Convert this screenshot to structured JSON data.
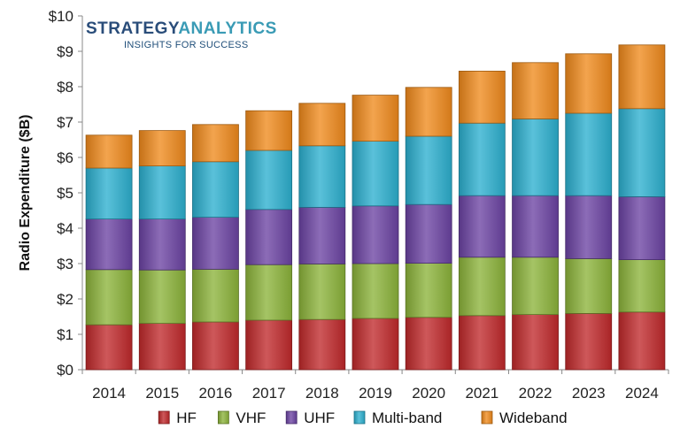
{
  "brand": {
    "name_part1": "STRATEGY",
    "name_part2": "ANALYTICS",
    "tagline": "INSIGHTS FOR SUCCESS",
    "color_part1": "#2a4d7a",
    "color_part2": "#3a9bb5"
  },
  "chart_data": {
    "type": "bar",
    "stacked": true,
    "ylabel": "Radio Expenditure ($B)",
    "xlabel": "",
    "ylim": [
      0,
      10
    ],
    "y_ticks": [
      "$0",
      "$1",
      "$2",
      "$3",
      "$4",
      "$5",
      "$6",
      "$7",
      "$8",
      "$9",
      "$10"
    ],
    "y_tick_values": [
      0,
      1,
      2,
      3,
      4,
      5,
      6,
      7,
      8,
      9,
      10
    ],
    "categories": [
      "2014",
      "2015",
      "2016",
      "2017",
      "2018",
      "2019",
      "2020",
      "2021",
      "2022",
      "2023",
      "2024"
    ],
    "legend_position": "bottom",
    "series": [
      {
        "name": "HF",
        "color": "#c0292b",
        "values": [
          1.27,
          1.31,
          1.35,
          1.4,
          1.42,
          1.45,
          1.48,
          1.53,
          1.56,
          1.59,
          1.63
        ]
      },
      {
        "name": "VHF",
        "color": "#8cb33a",
        "values": [
          1.56,
          1.51,
          1.49,
          1.57,
          1.57,
          1.55,
          1.53,
          1.65,
          1.62,
          1.55,
          1.48
        ]
      },
      {
        "name": "UHF",
        "color": "#6b43a3",
        "values": [
          1.43,
          1.44,
          1.47,
          1.56,
          1.6,
          1.63,
          1.66,
          1.74,
          1.74,
          1.78,
          1.78
        ]
      },
      {
        "name": "Multi-band",
        "color": "#2cb0cf",
        "values": [
          1.44,
          1.5,
          1.57,
          1.67,
          1.74,
          1.83,
          1.93,
          2.05,
          2.17,
          2.33,
          2.49
        ]
      },
      {
        "name": "Wideband",
        "color": "#f08a1c",
        "values": [
          0.93,
          1.0,
          1.05,
          1.12,
          1.2,
          1.3,
          1.38,
          1.47,
          1.59,
          1.68,
          1.8
        ]
      }
    ]
  }
}
